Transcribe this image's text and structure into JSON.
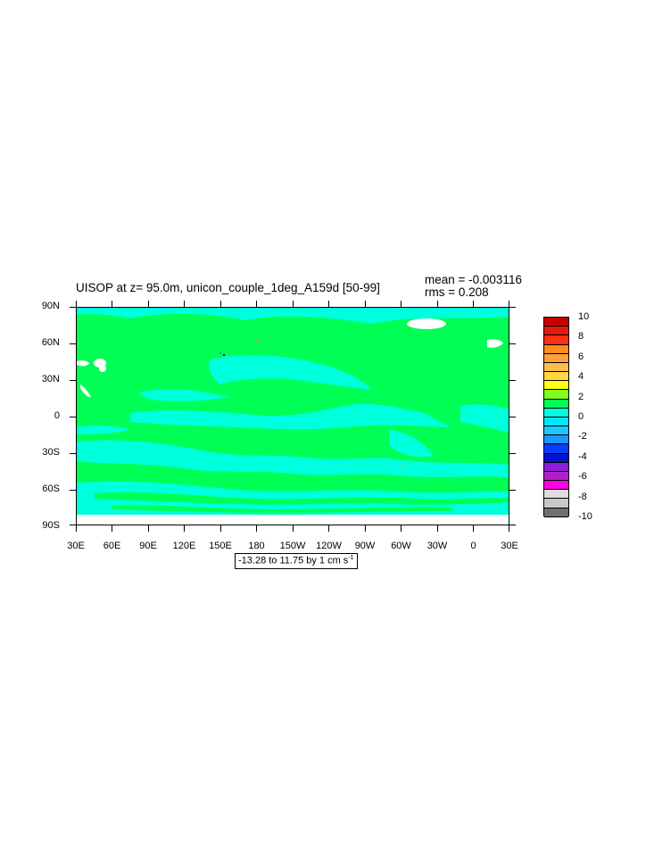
{
  "plot": {
    "title": "UISOP at z=  95.0m, unicon_couple_1deg_A159d [50-99]",
    "mean": "mean = -0.003116",
    "rms": "rms = 0.208",
    "range_note": "-13.28 to 11.75 by 1 cm s",
    "range_unit_exponent": "-1"
  },
  "map": {
    "projection": "cylindrical-equidistant",
    "lon_center": 210,
    "lat_labels": [
      "90N",
      "60N",
      "30N",
      "0",
      "30S",
      "60S",
      "90S"
    ],
    "lon_labels": [
      "30E",
      "60E",
      "90E",
      "120E",
      "150E",
      "180",
      "150W",
      "120W",
      "90W",
      "60W",
      "30W",
      "0",
      "30E"
    ],
    "ocean_fill_color": "#00ff55",
    "land_fill_color": "#ffffff",
    "secondary_fill_color": "#00ffdd"
  },
  "colorbar": {
    "labels": [
      "10",
      "8",
      "6",
      "4",
      "2",
      "0",
      "-2",
      "-4",
      "-6",
      "-8",
      "-10"
    ],
    "colors": [
      "#c80000",
      "#e11a0a",
      "#ff3014",
      "#ff8c1e",
      "#ffa03c",
      "#ffbe4c",
      "#ffd83e",
      "#ffff14",
      "#7eff1e",
      "#00ff55",
      "#00ffdd",
      "#00e6ff",
      "#1ec8ff",
      "#1e96ff",
      "#0a3cff",
      "#0014d2",
      "#8c1edc",
      "#b41ec8",
      "#ff00e6",
      "#dddddd",
      "#c8c8c8",
      "#707070"
    ]
  }
}
